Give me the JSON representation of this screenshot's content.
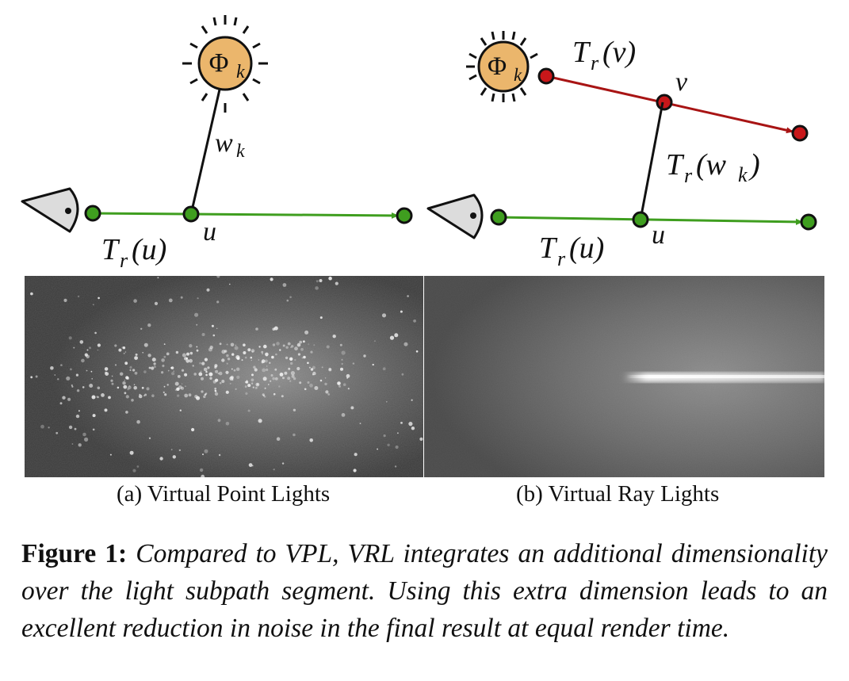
{
  "figure": {
    "left_diagram": {
      "light_label_base": "Φ",
      "light_label_sub": "k",
      "segment_base": "w",
      "segment_sub": "k",
      "point_label": "u",
      "transmittance": {
        "base": "T",
        "sub": "r",
        "arg": "(u)"
      }
    },
    "right_diagram": {
      "light_label_base": "Φ",
      "light_label_sub": "k",
      "ray_transmittance": {
        "base": "T",
        "sub": "r",
        "arg": "(v)"
      },
      "ray_point_label": "v",
      "connection_transmittance": {
        "base": "T",
        "sub": "r",
        "arg_open": "(w",
        "arg_sub": "k",
        "arg_close": ")"
      },
      "point_label": "u",
      "transmittance": {
        "base": "T",
        "sub": "r",
        "arg": "(u)"
      }
    },
    "subfigures": [
      {
        "label": "(a) Virtual Point Lights"
      },
      {
        "label": "(b) Virtual Ray Lights"
      }
    ],
    "caption": {
      "label": "Figure 1:",
      "text": "Compared to VPL, VRL integrates an additional dimensionality over the light subpath segment. Using this extra dimension leads to an excellent reduction in noise in the final result at equal render time."
    },
    "colors": {
      "light_fill": "#ebb66c",
      "camera_path": "#3f9e1f",
      "camera_node": "#3f9e1f",
      "light_path": "#a81414",
      "light_node": "#c8171a"
    }
  }
}
